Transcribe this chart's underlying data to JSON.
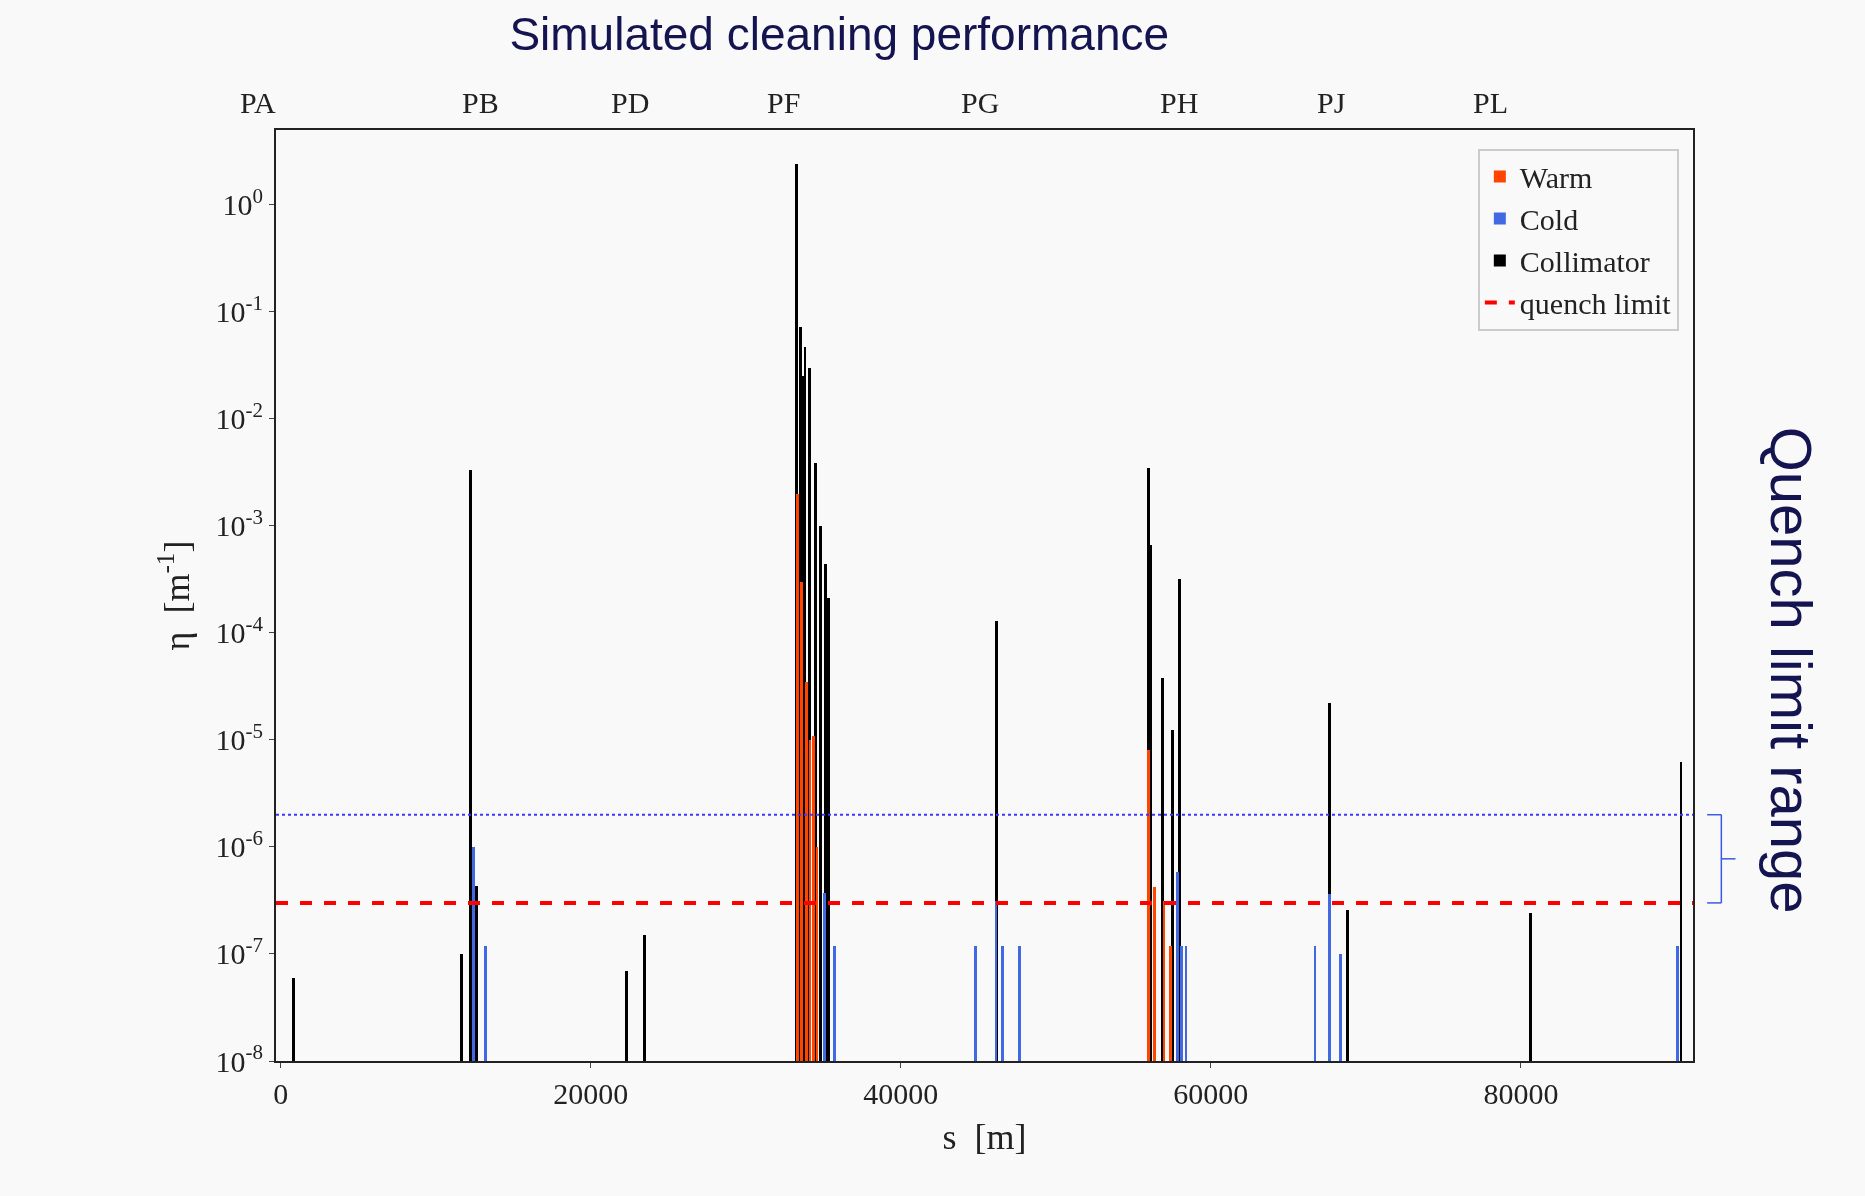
{
  "chart_data": {
    "type": "bar",
    "title": "Simulated cleaning performance",
    "xlabel": "s  [m]",
    "ylabel": "η  [m$^{-1}$]",
    "log": "y",
    "xlim": [
      -300,
      91100
    ],
    "ylim": [
      1e-08,
      5
    ],
    "xticks": [
      0,
      20000,
      40000,
      60000,
      80000
    ],
    "yticks": [
      {
        "value": 1,
        "label": "10$^{0}$"
      },
      {
        "value": 0.1,
        "label": "10$^{-1}$"
      },
      {
        "value": 0.01,
        "label": "10$^{-2}$"
      },
      {
        "value": 0.001,
        "label": "10$^{-3}$"
      },
      {
        "value": 0.0001,
        "label": "10$^{-4}$"
      },
      {
        "value": 1e-05,
        "label": "10$^{-5}$"
      },
      {
        "value": 1e-06,
        "label": "10$^{-6}$"
      },
      {
        "value": 1e-07,
        "label": "10$^{-7}$"
      },
      {
        "value": 1e-08,
        "label": "10$^{-8}$"
      }
    ],
    "legend": "top right",
    "grid": false,
    "series": [
      {
        "name": "Warm",
        "color": "#ff4500",
        "x": [
          33360,
          33600,
          33900,
          34150,
          34390,
          34600,
          55980,
          56350,
          56980,
          57420
        ],
        "values": [
          0.002,
          0.0003,
          3.5e-05,
          1e-05,
          1.1e-05,
          1e-06,
          8e-06,
          4.2e-07,
          3.1e-07,
          1.2e-07
        ]
      },
      {
        "name": "Cold",
        "color": "#4169e1",
        "x": [
          12460,
          13190,
          35090,
          35700,
          44820,
          46140,
          46550,
          47660,
          57860,
          58100,
          58400,
          66720,
          67640,
          68370,
          90080
        ],
        "values": [
          1e-06,
          1.2e-07,
          3.7e-07,
          1.2e-07,
          1.2e-07,
          3.1e-07,
          1.2e-07,
          1.2e-07,
          5.8e-07,
          1.2e-07,
          1.2e-07,
          1.2e-07,
          3.6e-07,
          1e-07,
          1.2e-07
        ]
      },
      {
        "name": "Collimator",
        "color": "#000000",
        "x": [
          840,
          11660,
          12270,
          12650,
          22300,
          23470,
          33280,
          33510,
          33670,
          33820,
          34130,
          34500,
          34820,
          35120,
          35350,
          46170,
          55980,
          56130,
          56900,
          57550,
          57990,
          67650,
          68810,
          80640,
          90330
        ],
        "values": [
          6e-08,
          1e-07,
          0.0033,
          4.3e-07,
          7e-08,
          1.5e-07,
          2.4,
          0.072,
          0.025,
          0.047,
          0.03,
          0.0039,
          0.001,
          0.00044,
          0.00021,
          0.00013,
          0.0035,
          0.00066,
          3.8e-05,
          1.25e-05,
          0.00032,
          2.2e-05,
          2.6e-07,
          2.4e-07,
          6.2e-06
        ]
      }
    ],
    "ref_lines": [
      {
        "axis": "y",
        "value": 2e-06,
        "color": "#3a3aff",
        "line_style": "dotted"
      },
      {
        "axis": "y",
        "value": 3e-07,
        "color": "#ff0000",
        "line_style": "dashed",
        "label": "quench limit"
      }
    ],
    "annotations": [
      "Quench limit range",
      "PA",
      "PB",
      "PD",
      "PF",
      "PG",
      "PH",
      "PJ",
      "PL"
    ]
  }
}
